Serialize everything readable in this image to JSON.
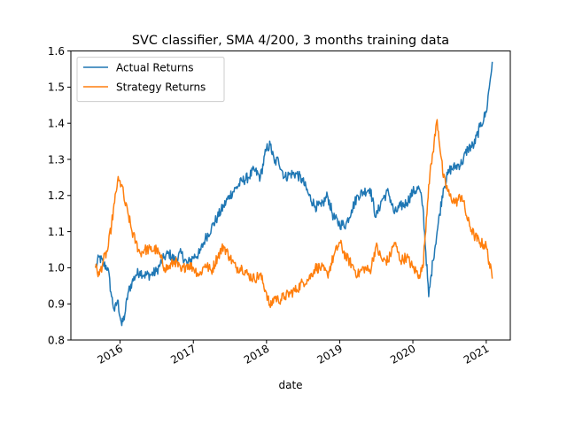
{
  "chart_data": {
    "type": "line",
    "title": "SVC classifier, SMA 4/200, 3 months training data",
    "xlabel": "date",
    "ylabel": "",
    "xlim": [
      "2015-05-01",
      "2021-05-01"
    ],
    "ylim": [
      0.8,
      1.6
    ],
    "x_ticks": [
      "2016",
      "2017",
      "2018",
      "2019",
      "2020",
      "2021"
    ],
    "y_ticks": [
      "0.8",
      "0.9",
      "1.0",
      "1.1",
      "1.2",
      "1.3",
      "1.4",
      "1.5",
      "1.6"
    ],
    "grid": false,
    "legend_position": "top-left",
    "x": [
      "2015-09-01",
      "2015-09-20",
      "2015-10-10",
      "2015-11-01",
      "2015-11-20",
      "2015-12-05",
      "2015-12-20",
      "2016-01-10",
      "2016-01-25",
      "2016-02-10",
      "2016-03-01",
      "2016-03-20",
      "2016-04-10",
      "2016-05-01",
      "2016-06-01",
      "2016-07-01",
      "2016-07-20",
      "2016-08-10",
      "2016-09-01",
      "2016-10-01",
      "2016-11-01",
      "2016-12-01",
      "2017-01-01",
      "2017-02-01",
      "2017-03-01",
      "2017-04-01",
      "2017-05-01",
      "2017-06-01",
      "2017-07-01",
      "2017-08-01",
      "2017-09-01",
      "2017-10-01",
      "2017-11-01",
      "2017-12-01",
      "2018-01-01",
      "2018-01-20",
      "2018-02-10",
      "2018-03-01",
      "2018-04-01",
      "2018-05-01",
      "2018-06-01",
      "2018-07-01",
      "2018-08-01",
      "2018-09-01",
      "2018-10-01",
      "2018-11-01",
      "2018-12-01",
      "2019-01-01",
      "2019-02-01",
      "2019-03-01",
      "2019-04-01",
      "2019-05-01",
      "2019-06-01",
      "2019-07-01",
      "2019-08-01",
      "2019-09-01",
      "2019-10-01",
      "2019-11-01",
      "2019-12-01",
      "2020-01-01",
      "2020-02-01",
      "2020-02-20",
      "2020-03-20",
      "2020-04-10",
      "2020-05-01",
      "2020-06-01",
      "2020-07-01",
      "2020-08-01",
      "2020-09-01",
      "2020-10-01",
      "2020-11-01",
      "2020-12-01",
      "2021-01-01",
      "2021-01-31"
    ],
    "series": [
      {
        "name": "Actual Returns",
        "color": "#1f77b4",
        "values": [
          1.0,
          1.03,
          1.01,
          1.0,
          0.92,
          0.88,
          0.91,
          0.84,
          0.87,
          0.93,
          0.96,
          0.98,
          0.99,
          0.98,
          0.98,
          0.99,
          1.01,
          1.03,
          1.04,
          1.02,
          1.04,
          1.01,
          1.03,
          1.04,
          1.08,
          1.11,
          1.14,
          1.17,
          1.2,
          1.22,
          1.24,
          1.25,
          1.27,
          1.25,
          1.33,
          1.34,
          1.29,
          1.3,
          1.25,
          1.26,
          1.26,
          1.24,
          1.2,
          1.17,
          1.17,
          1.2,
          1.14,
          1.12,
          1.12,
          1.16,
          1.2,
          1.21,
          1.22,
          1.14,
          1.19,
          1.21,
          1.15,
          1.17,
          1.18,
          1.21,
          1.22,
          1.17,
          0.92,
          1.02,
          1.1,
          1.22,
          1.27,
          1.28,
          1.29,
          1.33,
          1.34,
          1.39,
          1.43,
          1.57
        ]
      },
      {
        "name": "Strategy Returns",
        "color": "#ff7f0e",
        "values": [
          1.0,
          0.98,
          1.02,
          1.05,
          1.12,
          1.18,
          1.24,
          1.23,
          1.18,
          1.15,
          1.1,
          1.07,
          1.04,
          1.05,
          1.05,
          1.05,
          1.03,
          1.0,
          1.0,
          1.02,
          0.99,
          1.01,
          1.0,
          0.98,
          1.01,
          0.99,
          1.03,
          1.06,
          1.03,
          1.0,
          1.0,
          0.98,
          0.97,
          0.98,
          0.93,
          0.89,
          0.92,
          0.91,
          0.92,
          0.93,
          0.94,
          0.96,
          0.97,
          1.0,
          1.0,
          0.98,
          1.03,
          1.07,
          1.03,
          1.01,
          0.98,
          1.0,
          0.99,
          1.06,
          1.02,
          1.02,
          1.07,
          1.02,
          1.03,
          1.0,
          0.98,
          1.0,
          1.23,
          1.32,
          1.41,
          1.25,
          1.2,
          1.18,
          1.2,
          1.13,
          1.09,
          1.07,
          1.06,
          0.97
        ]
      }
    ]
  }
}
